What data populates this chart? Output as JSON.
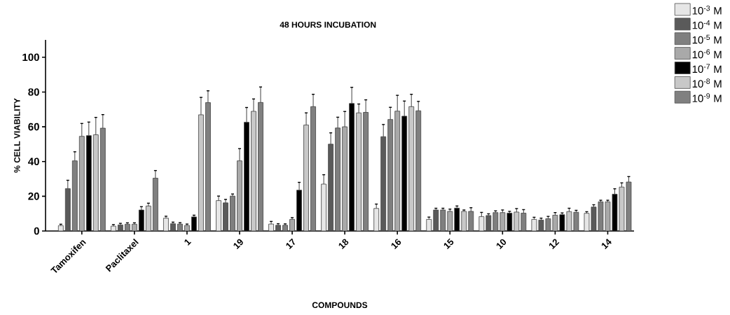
{
  "chart_data": {
    "type": "bar",
    "title": "48 HOURS INCUBATION",
    "xlabel": "COMPOUNDS",
    "ylabel": "% CELL VIABILITY",
    "categories": [
      "Tamoxifen",
      "Paclitaxel",
      "1",
      "19",
      "17",
      "18",
      "16",
      "15",
      "10",
      "12",
      "14"
    ],
    "ylim": [
      0,
      110
    ],
    "yticks": [
      0,
      20,
      40,
      60,
      80,
      100
    ],
    "legend": "top right",
    "series": [
      {
        "name": "10$^{-3}$ M",
        "color": "#e6e6e6",
        "values": [
          3.1,
          2.8,
          7.4,
          17.5,
          4,
          27,
          13,
          6.7,
          8.3,
          6.7,
          10.2
        ],
        "errors": [
          0.8,
          0.9,
          1.1,
          2.6,
          1.5,
          5.4,
          2.5,
          1.3,
          2.4,
          1.2,
          0.9
        ]
      },
      {
        "name": "10$^{-4}$ M",
        "color": "#5a5a5a",
        "values": [
          24.4,
          3.5,
          4.2,
          16.2,
          3.3,
          50,
          54.3,
          12.1,
          8.9,
          6.3,
          13.8
        ],
        "errors": [
          4.8,
          0.9,
          0.9,
          2,
          0.9,
          6.5,
          7,
          1,
          1,
          1.1,
          1.3
        ]
      },
      {
        "name": "10$^{-5}$ M",
        "color": "#7f7f7f",
        "values": [
          40.4,
          3.9,
          4,
          20.1,
          3.3,
          59.3,
          64.2,
          12.1,
          10.6,
          7.1,
          16.8
        ],
        "errors": [
          5.2,
          0.8,
          0.8,
          1.2,
          0.8,
          6.2,
          7,
          1,
          1,
          1.3,
          0.9
        ]
      },
      {
        "name": "10$^{-6}$ M",
        "color": "#a9a9a9",
        "values": [
          54.5,
          3.9,
          3.2,
          40.4,
          6.7,
          60,
          69,
          11.3,
          10.6,
          9.1,
          16.8
        ],
        "errors": [
          7.4,
          0.8,
          0.8,
          7,
          1,
          8.8,
          9.1,
          1.3,
          1.5,
          1.5,
          0.9
        ]
      },
      {
        "name": "10$^{-7}$ M",
        "color": "#000000",
        "values": [
          54.9,
          12.1,
          8.1,
          62.6,
          23.5,
          73.4,
          66.1,
          13.2,
          10.3,
          9.4,
          21.2
        ],
        "errors": [
          7.8,
          1.9,
          1,
          8.5,
          4.5,
          9.3,
          8.7,
          1.2,
          1,
          1,
          3.1
        ]
      },
      {
        "name": "10$^{-8}$ M",
        "color": "#c8c8c8",
        "values": [
          55.4,
          14.4,
          66.9,
          68.9,
          61,
          68,
          71.6,
          11.3,
          10.9,
          11.2,
          25.3
        ],
        "errors": [
          10,
          1.6,
          10,
          7.1,
          7,
          5.1,
          7.1,
          0.8,
          2,
          1.9,
          2.4
        ]
      },
      {
        "name": "10$^{-9}$ M",
        "color": "#808080",
        "values": [
          59.2,
          30.4,
          73.9,
          74,
          71.6,
          68.3,
          69.2,
          11.3,
          10.3,
          10.8,
          28.2
        ],
        "errors": [
          7.8,
          4.4,
          6.8,
          8.9,
          7.1,
          7.2,
          5.4,
          2.1,
          2,
          1.1,
          3.1
        ]
      }
    ]
  }
}
